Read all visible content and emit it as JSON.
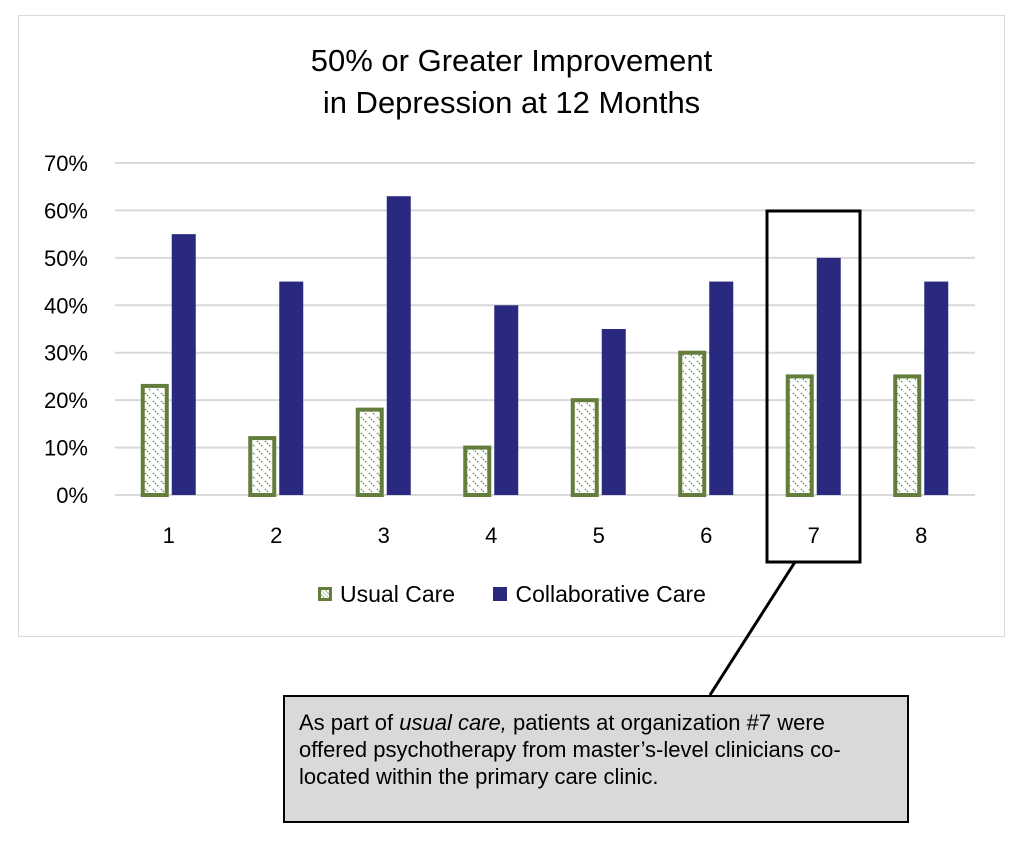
{
  "chart_data": {
    "type": "bar",
    "title": [
      "50% or Greater Improvement",
      "in Depression at 12 Months"
    ],
    "categories": [
      "1",
      "2",
      "3",
      "4",
      "5",
      "6",
      "7",
      "8"
    ],
    "series": [
      {
        "name": "Usual Care",
        "values": [
          23,
          12,
          18,
          10,
          20,
          30,
          25,
          25
        ],
        "color": "#627d3c",
        "pattern": "hatched"
      },
      {
        "name": "Collaborative Care",
        "values": [
          55,
          45,
          63,
          40,
          35,
          45,
          50,
          45
        ],
        "color": "#29297f"
      }
    ],
    "yticks": [
      "0%",
      "10%",
      "20%",
      "30%",
      "40%",
      "50%",
      "60%",
      "70%"
    ],
    "ylim": [
      0,
      70
    ],
    "grid": true,
    "legend": "bottom",
    "highlight_category": "7",
    "annotation": {
      "prefix": "As part of ",
      "emphasis": "usual care,",
      "rest": " patients at organization #7 were offered psychotherapy from master’s-level clinicians co-located within the primary care clinic."
    }
  }
}
